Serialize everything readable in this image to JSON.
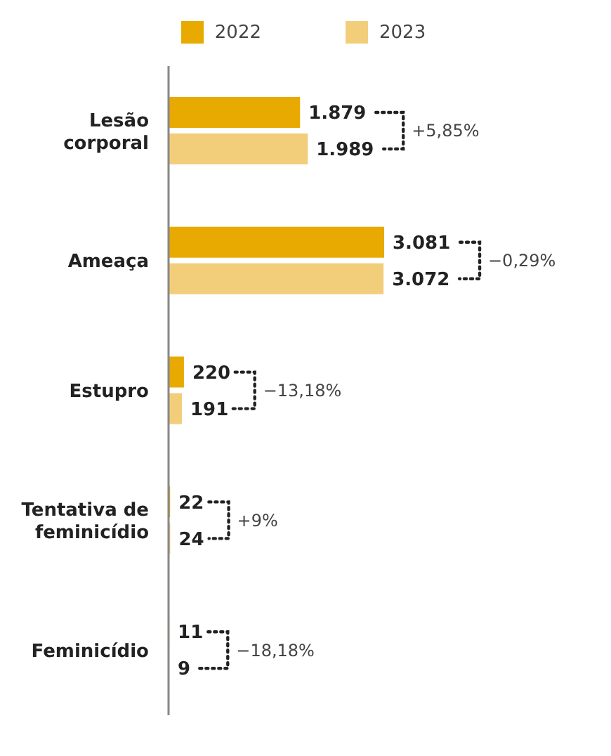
{
  "chart_data": {
    "type": "bar",
    "orientation": "horizontal",
    "categories": [
      "Lesão corporal",
      "Ameaça",
      "Estupro",
      "Tentativa de feminicídio",
      "Feminicídio"
    ],
    "series": [
      {
        "name": "2022",
        "color": "#e8a900",
        "values": [
          1879,
          3081,
          220,
          22,
          11
        ],
        "value_labels": [
          "1.879",
          "3.081",
          "220",
          "22",
          "11"
        ]
      },
      {
        "name": "2023",
        "color": "#f2cd7a",
        "values": [
          1989,
          3072,
          191,
          24,
          9
        ],
        "value_labels": [
          "1.989",
          "3.072",
          "191",
          "24",
          "9"
        ]
      }
    ],
    "annotations": [
      "+5,85%",
      "−0,29%",
      "−13,18%",
      "+9%",
      "−18,18%"
    ],
    "legend": "top",
    "tick_labels": "y"
  }
}
